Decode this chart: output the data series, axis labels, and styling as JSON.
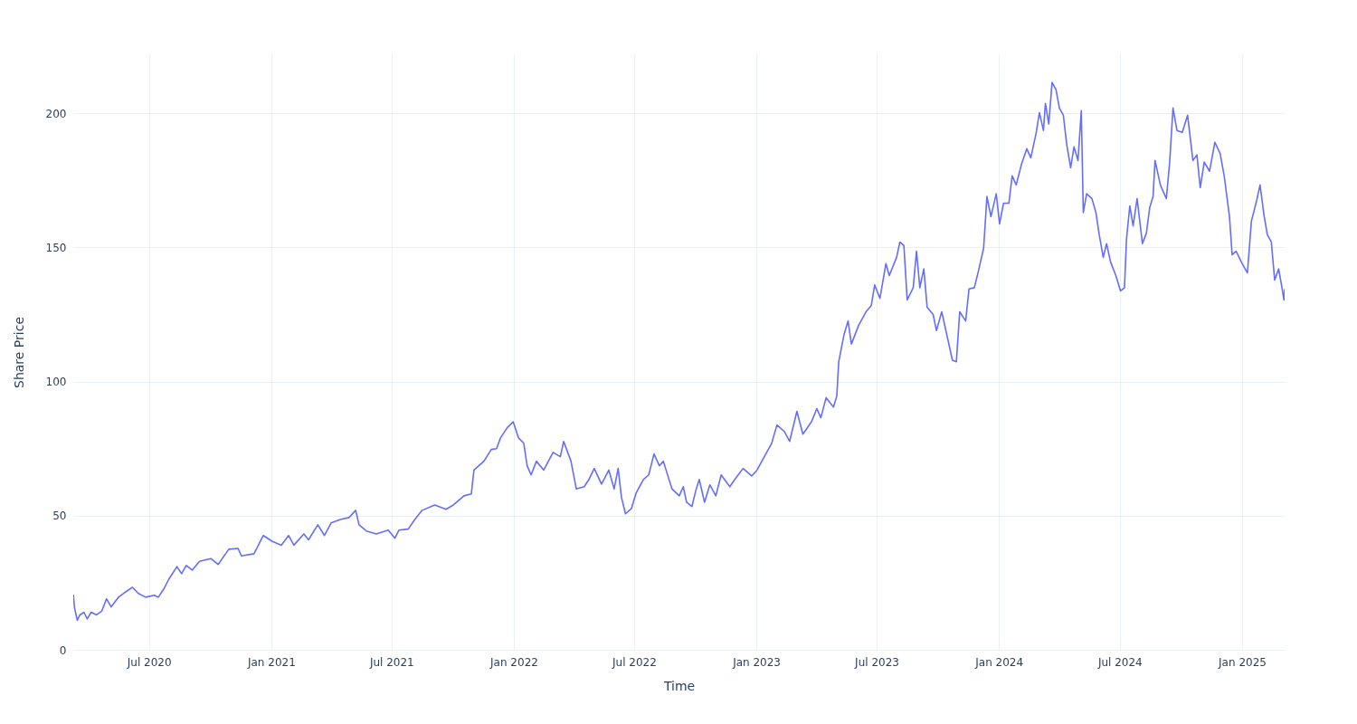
{
  "chart_data": {
    "type": "line",
    "xlabel": "Time",
    "ylabel": "Share Price",
    "grid": true,
    "xlim": [
      "2020-03-09",
      "2025-03-06"
    ],
    "xticks": [
      {
        "value": "2020-07-01",
        "label": "Jul 2020"
      },
      {
        "value": "2021-01-01",
        "label": "Jan 2021"
      },
      {
        "value": "2021-07-01",
        "label": "Jul 2021"
      },
      {
        "value": "2022-01-01",
        "label": "Jan 2022"
      },
      {
        "value": "2022-07-01",
        "label": "Jul 2022"
      },
      {
        "value": "2023-01-01",
        "label": "Jan 2023"
      },
      {
        "value": "2023-07-01",
        "label": "Jul 2023"
      },
      {
        "value": "2024-01-01",
        "label": "Jan 2024"
      },
      {
        "value": "2024-07-01",
        "label": "Jul 2024"
      },
      {
        "value": "2025-01-01",
        "label": "Jan 2025"
      }
    ],
    "ylim": [
      0,
      222
    ],
    "yticks": [
      0,
      50,
      100,
      150,
      200
    ],
    "x": [
      "2020-03-09",
      "2020-03-11",
      "2020-03-15",
      "2020-03-19",
      "2020-03-25",
      "2020-03-30",
      "2020-04-05",
      "2020-04-13",
      "2020-04-21",
      "2020-04-28",
      "2020-05-05",
      "2020-05-16",
      "2020-05-27",
      "2020-06-06",
      "2020-06-15",
      "2020-06-26",
      "2020-07-09",
      "2020-07-15",
      "2020-07-23",
      "2020-07-31",
      "2020-08-12",
      "2020-08-19",
      "2020-08-26",
      "2020-09-04",
      "2020-09-15",
      "2020-10-02",
      "2020-10-13",
      "2020-10-29",
      "2020-11-12",
      "2020-11-17",
      "2020-12-06",
      "2020-12-20",
      "2021-01-02",
      "2021-01-16",
      "2021-01-27",
      "2021-02-04",
      "2021-02-19",
      "2021-02-26",
      "2021-03-12",
      "2021-03-22",
      "2021-04-01",
      "2021-04-15",
      "2021-04-28",
      "2021-05-08",
      "2021-05-13",
      "2021-05-24",
      "2021-06-08",
      "2021-06-26",
      "2021-07-06",
      "2021-07-12",
      "2021-07-26",
      "2021-08-05",
      "2021-08-16",
      "2021-09-04",
      "2021-09-21",
      "2021-10-02",
      "2021-10-18",
      "2021-10-29",
      "2021-11-02",
      "2021-11-17",
      "2021-11-28",
      "2021-12-06",
      "2021-12-12",
      "2021-12-22",
      "2021-12-31",
      "2022-01-08",
      "2022-01-16",
      "2022-01-21",
      "2022-01-27",
      "2022-02-04",
      "2022-02-15",
      "2022-03-01",
      "2022-03-12",
      "2022-03-17",
      "2022-03-28",
      "2022-04-05",
      "2022-04-17",
      "2022-04-24",
      "2022-05-02",
      "2022-05-13",
      "2022-05-24",
      "2022-06-01",
      "2022-06-07",
      "2022-06-12",
      "2022-06-18",
      "2022-06-27",
      "2022-07-04",
      "2022-07-15",
      "2022-07-23",
      "2022-07-31",
      "2022-08-08",
      "2022-08-14",
      "2022-08-27",
      "2022-09-07",
      "2022-09-13",
      "2022-09-18",
      "2022-09-26",
      "2022-10-02",
      "2022-10-07",
      "2022-10-15",
      "2022-10-23",
      "2022-11-01",
      "2022-11-09",
      "2022-11-22",
      "2022-12-01",
      "2022-12-12",
      "2022-12-25",
      "2023-01-02",
      "2023-01-13",
      "2023-01-24",
      "2023-02-01",
      "2023-02-12",
      "2023-02-20",
      "2023-03-03",
      "2023-03-12",
      "2023-03-25",
      "2023-04-02",
      "2023-04-08",
      "2023-04-16",
      "2023-04-27",
      "2023-05-02",
      "2023-05-05",
      "2023-05-13",
      "2023-05-19",
      "2023-05-24",
      "2023-06-04",
      "2023-06-15",
      "2023-06-23",
      "2023-06-28",
      "2023-07-06",
      "2023-07-15",
      "2023-07-20",
      "2023-07-31",
      "2023-08-05",
      "2023-08-11",
      "2023-08-16",
      "2023-08-25",
      "2023-08-30",
      "2023-09-04",
      "2023-09-10",
      "2023-09-15",
      "2023-09-24",
      "2023-09-29",
      "2023-10-07",
      "2023-10-15",
      "2023-10-23",
      "2023-10-29",
      "2023-11-03",
      "2023-11-12",
      "2023-11-17",
      "2023-11-25",
      "2023-12-01",
      "2023-12-09",
      "2023-12-14",
      "2023-12-20",
      "2023-12-28",
      "2024-01-02",
      "2024-01-08",
      "2024-01-16",
      "2024-01-21",
      "2024-01-27",
      "2024-02-04",
      "2024-02-12",
      "2024-02-18",
      "2024-02-26",
      "2024-03-02",
      "2024-03-08",
      "2024-03-11",
      "2024-03-16",
      "2024-03-21",
      "2024-03-27",
      "2024-04-01",
      "2024-04-07",
      "2024-04-12",
      "2024-04-18",
      "2024-04-23",
      "2024-04-29",
      "2024-05-04",
      "2024-05-07",
      "2024-05-12",
      "2024-05-20",
      "2024-05-26",
      "2024-05-31",
      "2024-06-06",
      "2024-06-11",
      "2024-06-17",
      "2024-06-25",
      "2024-07-02",
      "2024-07-08",
      "2024-07-11",
      "2024-07-16",
      "2024-07-21",
      "2024-07-27",
      "2024-08-04",
      "2024-08-10",
      "2024-08-15",
      "2024-08-20",
      "2024-08-23",
      "2024-08-31",
      "2024-09-09",
      "2024-09-14",
      "2024-09-19",
      "2024-09-25",
      "2024-10-03",
      "2024-10-11",
      "2024-10-19",
      "2024-10-25",
      "2024-10-30",
      "2024-11-05",
      "2024-11-13",
      "2024-11-21",
      "2024-11-29",
      "2024-12-05",
      "2024-12-13",
      "2024-12-17",
      "2024-12-23",
      "2025-01-01",
      "2025-01-09",
      "2025-01-15",
      "2025-01-23",
      "2025-01-28",
      "2025-02-03",
      "2025-02-08",
      "2025-02-14",
      "2025-02-19",
      "2025-02-25",
      "2025-03-02",
      "2025-03-05",
      "2025-03-06"
    ],
    "series": [
      {
        "color": "#636efa",
        "values": [
          20.6,
          15.5,
          11,
          13,
          14,
          11.5,
          14,
          13,
          14.5,
          19,
          16,
          19.6,
          21.6,
          23.3,
          21,
          19.6,
          20.3,
          19.6,
          22.6,
          26.4,
          31,
          28.4,
          31.4,
          29.7,
          33,
          34,
          31.8,
          37.5,
          37.8,
          35,
          35.8,
          42.6,
          40.5,
          39,
          42.6,
          39,
          43.2,
          41,
          46.6,
          42.6,
          47.3,
          48.6,
          49.3,
          52,
          46.6,
          44.3,
          43.2,
          44.6,
          41.6,
          44.6,
          45,
          48.6,
          52,
          54,
          52.4,
          54,
          57.4,
          58.1,
          67,
          70.3,
          74.7,
          75,
          79,
          82.8,
          85,
          79,
          77,
          68.6,
          65.2,
          70.3,
          67,
          73.6,
          72,
          77.7,
          70.3,
          60,
          60.8,
          63.5,
          67.6,
          61.8,
          67,
          60,
          67.6,
          56.8,
          50.7,
          52.7,
          58.4,
          63.5,
          65.2,
          73,
          68.6,
          70.3,
          60,
          57.4,
          60.8,
          55,
          53.4,
          59.5,
          63.5,
          55,
          61.5,
          57.4,
          65.2,
          60.8,
          64,
          67.6,
          64.8,
          67,
          72,
          77,
          83.8,
          81.4,
          77.7,
          88.9,
          80.4,
          85,
          89.9,
          86.5,
          94,
          90.5,
          94.6,
          107.4,
          117.6,
          122.6,
          114,
          121,
          126,
          128.4,
          136,
          131,
          144,
          139.5,
          146.3,
          152,
          150.7,
          130.4,
          135,
          148.6,
          135,
          142,
          127.7,
          125,
          119,
          126,
          117,
          108,
          107.4,
          126,
          122.6,
          134.5,
          135,
          141,
          149.7,
          169,
          161.5,
          170,
          158.8,
          166.5,
          166.5,
          176.7,
          173.3,
          181,
          186.8,
          183.4,
          192.6,
          200.3,
          193.6,
          203.7,
          196,
          211.5,
          208.8,
          202,
          199.3,
          188.5,
          179.7,
          187.5,
          182.4,
          201,
          163,
          170,
          168.2,
          163,
          154.7,
          146.3,
          151.4,
          144.6,
          139.5,
          133.8,
          135,
          153,
          165.5,
          158,
          168.2,
          151.4,
          155.4,
          164.9,
          169,
          182.4,
          173.3,
          168.2,
          181.8,
          202,
          193.6,
          192.9,
          199.3,
          182.4,
          184.5,
          172.3,
          181.8,
          178.4,
          189.2,
          185,
          176.7,
          161.5,
          147.3,
          148.6,
          144,
          140.5,
          159.8,
          167.6,
          173.3,
          162,
          154.7,
          152,
          137.8,
          142,
          135,
          130.4,
          134.5
        ]
      }
    ]
  }
}
